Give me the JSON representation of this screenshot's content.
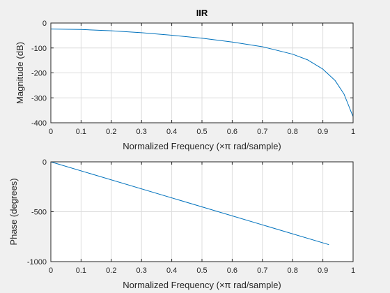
{
  "chart_data": [
    {
      "type": "line",
      "title": "IIR",
      "xlabel": "Normalized Frequency  (×π rad/sample)",
      "ylabel": "Magnitude (dB)",
      "xlim": [
        0,
        1
      ],
      "ylim": [
        -400,
        0
      ],
      "xticks": [
        "0",
        "0.1",
        "0.2",
        "0.3",
        "0.4",
        "0.5",
        "0.6",
        "0.7",
        "0.8",
        "0.9",
        "1"
      ],
      "yticks": [
        "0",
        "-100",
        "-200",
        "-300",
        "-400"
      ],
      "grid": true,
      "series": [
        {
          "color": "#0072bd",
          "x": [
            0,
            0.1,
            0.2,
            0.3,
            0.4,
            0.5,
            0.6,
            0.7,
            0.8,
            0.85,
            0.9,
            0.94,
            0.97,
            0.985,
            0.993,
            1.0
          ],
          "y": [
            -24,
            -26,
            -31,
            -39,
            -49,
            -61,
            -76,
            -95,
            -125,
            -148,
            -185,
            -230,
            -285,
            -330,
            -355,
            -375
          ]
        }
      ]
    },
    {
      "type": "line",
      "title": "",
      "xlabel": "Normalized Frequency  (×π rad/sample)",
      "ylabel": "Phase (degrees)",
      "xlim": [
        0,
        1
      ],
      "ylim": [
        -1000,
        0
      ],
      "xticks": [
        "0",
        "0.1",
        "0.2",
        "0.3",
        "0.4",
        "0.5",
        "0.6",
        "0.7",
        "0.8",
        "0.9",
        "1"
      ],
      "yticks": [
        "0",
        "-500",
        "-1000"
      ],
      "grid": true,
      "series": [
        {
          "color": "#0072bd",
          "x": [
            0,
            0.92
          ],
          "y": [
            0,
            -830
          ]
        }
      ]
    }
  ]
}
